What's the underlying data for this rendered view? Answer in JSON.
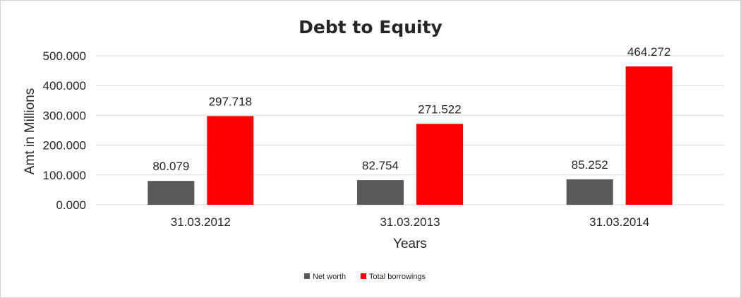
{
  "chart_data": {
    "type": "bar",
    "title": "Debt to Equity",
    "xlabel": "Years",
    "ylabel": "Amt in Millions",
    "categories": [
      "31.03.2012",
      "31.03.2013",
      "31.03.2014"
    ],
    "series": [
      {
        "name": "Net worth",
        "color": "#595959",
        "values": [
          80.079,
          82.754,
          85.252
        ],
        "labels": [
          "80.079",
          "82.754",
          "85.252"
        ]
      },
      {
        "name": "Total borrowings",
        "color": "#ff0000",
        "values": [
          297.718,
          271.522,
          464.272
        ],
        "labels": [
          "297.718",
          "271.522",
          "464.272"
        ]
      }
    ],
    "yticks": [
      0,
      100,
      200,
      300,
      400,
      500
    ],
    "ytick_labels": [
      "0.000",
      "100.000",
      "200.000",
      "300.000",
      "400.000",
      "500.000"
    ],
    "ylim": [
      0,
      500
    ],
    "grid": true,
    "legend": "bottom-center"
  }
}
